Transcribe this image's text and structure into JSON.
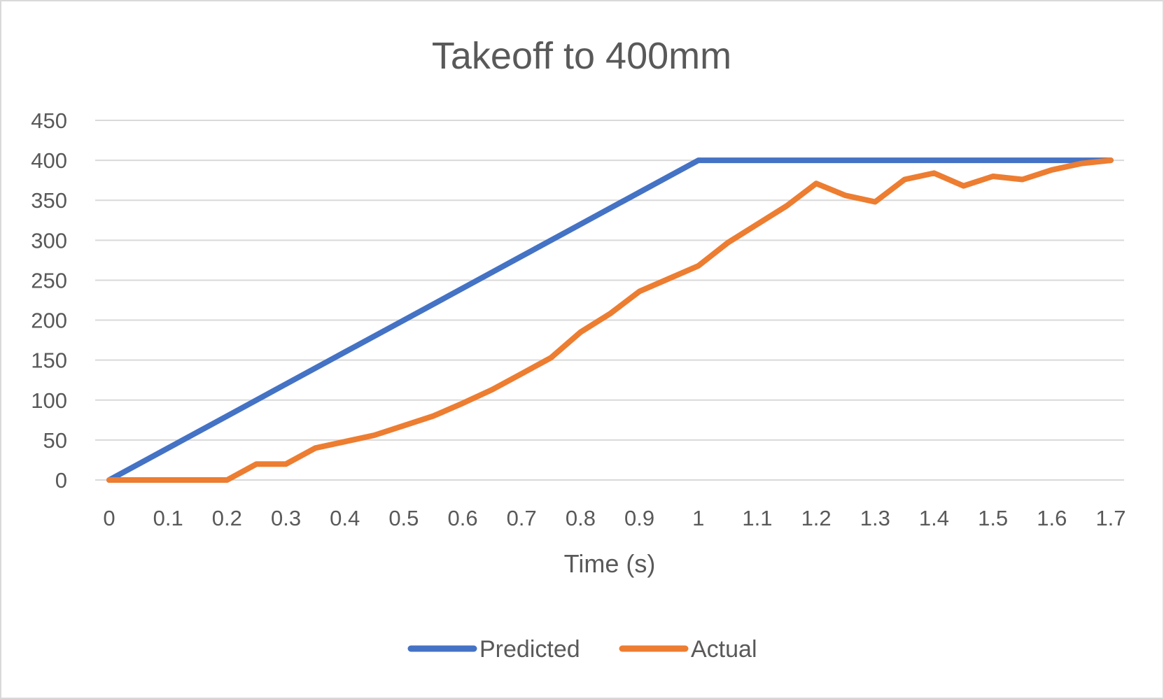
{
  "chart_data": {
    "type": "line",
    "title": "Takeoff to 400mm",
    "xlabel": "Time (s)",
    "ylabel": "",
    "xlim": [
      0,
      1.7
    ],
    "ylim": [
      0,
      450
    ],
    "x_ticks": [
      "0",
      "0.1",
      "0.2",
      "0.3",
      "0.4",
      "0.5",
      "0.6",
      "0.7",
      "0.8",
      "0.9",
      "1",
      "1.1",
      "1.2",
      "1.3",
      "1.4",
      "1.5",
      "1.6",
      "1.7"
    ],
    "y_ticks": [
      "0",
      "50",
      "100",
      "150",
      "200",
      "250",
      "300",
      "350",
      "400",
      "450"
    ],
    "grid": true,
    "legend_position": "bottom",
    "series": [
      {
        "name": "Predicted",
        "color": "#4472c4",
        "points": [
          [
            0,
            0
          ],
          [
            0.1,
            40
          ],
          [
            0.2,
            80
          ],
          [
            0.3,
            120
          ],
          [
            0.4,
            160
          ],
          [
            0.5,
            200
          ],
          [
            0.6,
            240
          ],
          [
            0.7,
            280
          ],
          [
            0.8,
            320
          ],
          [
            0.9,
            360
          ],
          [
            1.0,
            400
          ],
          [
            1.1,
            400
          ],
          [
            1.2,
            400
          ],
          [
            1.3,
            400
          ],
          [
            1.4,
            400
          ],
          [
            1.5,
            400
          ],
          [
            1.6,
            400
          ],
          [
            1.7,
            400
          ]
        ]
      },
      {
        "name": "Actual",
        "color": "#ed7d31",
        "points": [
          [
            0,
            0
          ],
          [
            0.05,
            0
          ],
          [
            0.1,
            0
          ],
          [
            0.15,
            0
          ],
          [
            0.2,
            0
          ],
          [
            0.25,
            20
          ],
          [
            0.3,
            20
          ],
          [
            0.35,
            40
          ],
          [
            0.4,
            48
          ],
          [
            0.45,
            56
          ],
          [
            0.5,
            68
          ],
          [
            0.55,
            80
          ],
          [
            0.6,
            96
          ],
          [
            0.65,
            113
          ],
          [
            0.7,
            133
          ],
          [
            0.75,
            153
          ],
          [
            0.8,
            185
          ],
          [
            0.85,
            208
          ],
          [
            0.9,
            236
          ],
          [
            0.95,
            252
          ],
          [
            1.0,
            268
          ],
          [
            1.05,
            297
          ],
          [
            1.1,
            320
          ],
          [
            1.15,
            343
          ],
          [
            1.2,
            371
          ],
          [
            1.25,
            356
          ],
          [
            1.3,
            348
          ],
          [
            1.35,
            376
          ],
          [
            1.4,
            384
          ],
          [
            1.45,
            368
          ],
          [
            1.5,
            380
          ],
          [
            1.55,
            376
          ],
          [
            1.6,
            388
          ],
          [
            1.65,
            396
          ],
          [
            1.7,
            400
          ]
        ]
      }
    ]
  }
}
